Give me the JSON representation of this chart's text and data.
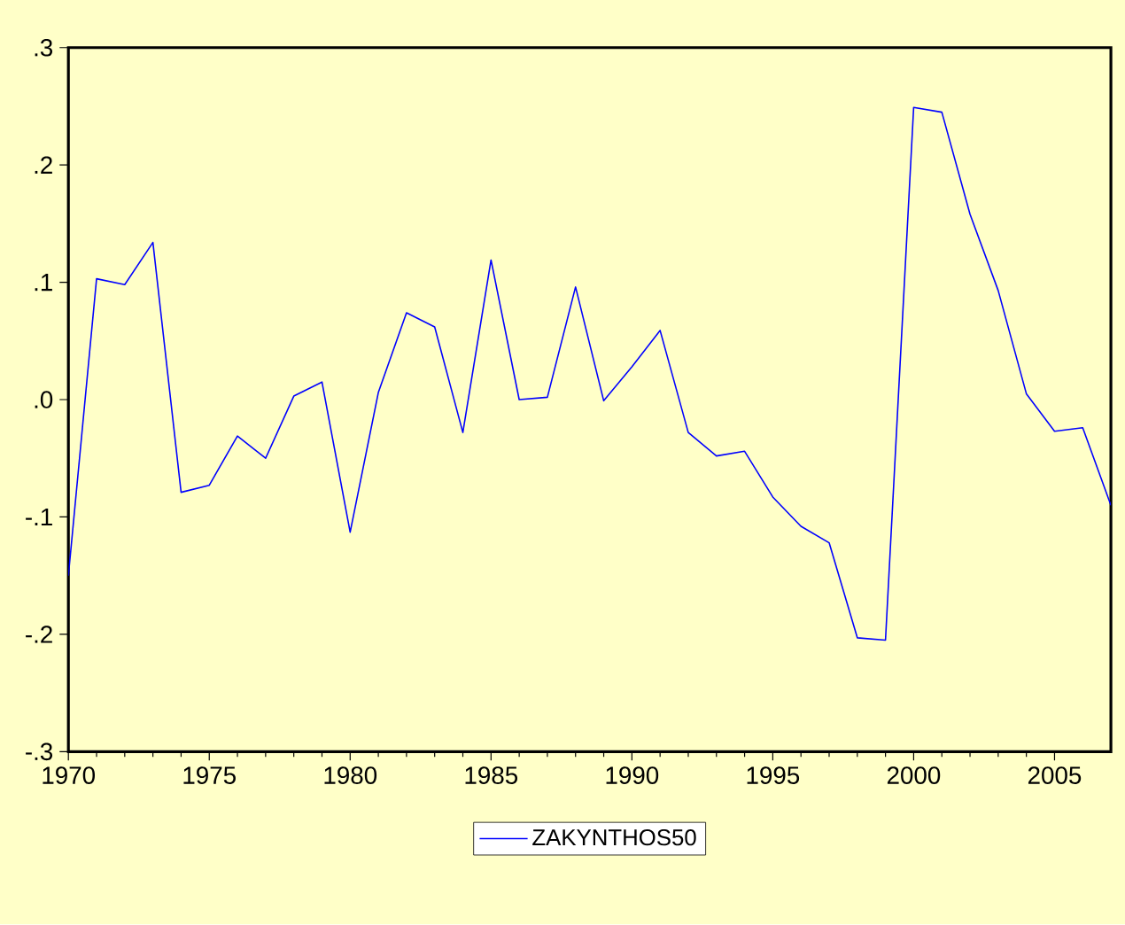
{
  "chart_data": {
    "type": "line",
    "x": [
      1970,
      1971,
      1972,
      1973,
      1974,
      1975,
      1976,
      1977,
      1978,
      1979,
      1980,
      1981,
      1982,
      1983,
      1984,
      1985,
      1986,
      1987,
      1988,
      1989,
      1990,
      1991,
      1992,
      1993,
      1994,
      1995,
      1996,
      1997,
      1998,
      1999,
      2000,
      2001,
      2002,
      2003,
      2004,
      2005,
      2006,
      2007
    ],
    "series": [
      {
        "name": "ZAKYNTHOS50",
        "color": "#0000ff",
        "values": [
          -0.15,
          0.103,
          0.098,
          0.134,
          -0.079,
          -0.073,
          -0.031,
          -0.05,
          0.003,
          0.015,
          -0.113,
          0.006,
          0.074,
          0.062,
          -0.028,
          0.119,
          0.0,
          0.002,
          0.096,
          -0.001,
          0.028,
          0.059,
          -0.028,
          -0.048,
          -0.044,
          -0.083,
          -0.108,
          -0.122,
          -0.203,
          -0.205,
          0.249,
          0.245,
          0.158,
          0.093,
          0.005,
          -0.027,
          -0.024,
          -0.09
        ]
      }
    ],
    "xlim": [
      1970,
      2007
    ],
    "xticks": [
      1970,
      1975,
      1980,
      1985,
      1990,
      1995,
      2000,
      2005
    ],
    "ylim": [
      -0.3,
      0.3
    ],
    "yticks": [
      {
        "value": -0.3,
        "label": "-.3"
      },
      {
        "value": -0.2,
        "label": "-.2"
      },
      {
        "value": -0.1,
        "label": "-.1"
      },
      {
        "value": 0.0,
        "label": ".0"
      },
      {
        "value": 0.1,
        "label": ".1"
      },
      {
        "value": 0.2,
        "label": ".2"
      },
      {
        "value": 0.3,
        "label": ".3"
      }
    ],
    "grid": false,
    "legend": "bottom",
    "marker": "none",
    "line_style": "solid"
  }
}
